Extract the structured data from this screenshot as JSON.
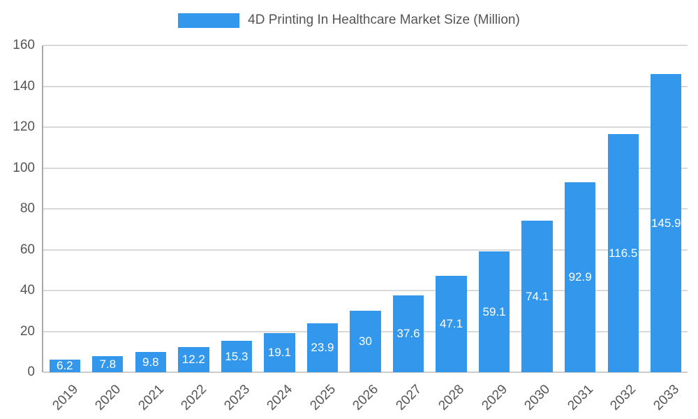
{
  "legend": {
    "swatch_color": "#3398ec"
  },
  "chart_data": {
    "type": "bar",
    "title": "4D Printing In Healthcare Market Size (Million)",
    "categories": [
      "2019",
      "2020",
      "2021",
      "2022",
      "2023",
      "2024",
      "2025",
      "2026",
      "2027",
      "2028",
      "2029",
      "2030",
      "2031",
      "2032",
      "2033"
    ],
    "values": [
      6.2,
      7.8,
      9.8,
      12.2,
      15.3,
      19.1,
      23.9,
      30,
      37.6,
      47.1,
      59.1,
      74.1,
      92.9,
      116.5,
      145.9
    ],
    "value_labels": [
      "6.2",
      "7.8",
      "9.8",
      "12.2",
      "15.3",
      "19.1",
      "23.9",
      "30",
      "37.6",
      "47.1",
      "59.1",
      "74.1",
      "92.9",
      "116.5",
      "145.9"
    ],
    "ylim": [
      0,
      160
    ],
    "yticks": [
      0,
      20,
      40,
      60,
      80,
      100,
      120,
      140,
      160
    ],
    "bar_color": "#3398ec",
    "bar_label_color": "#ffffff",
    "grid": true,
    "legend_position": "top"
  }
}
